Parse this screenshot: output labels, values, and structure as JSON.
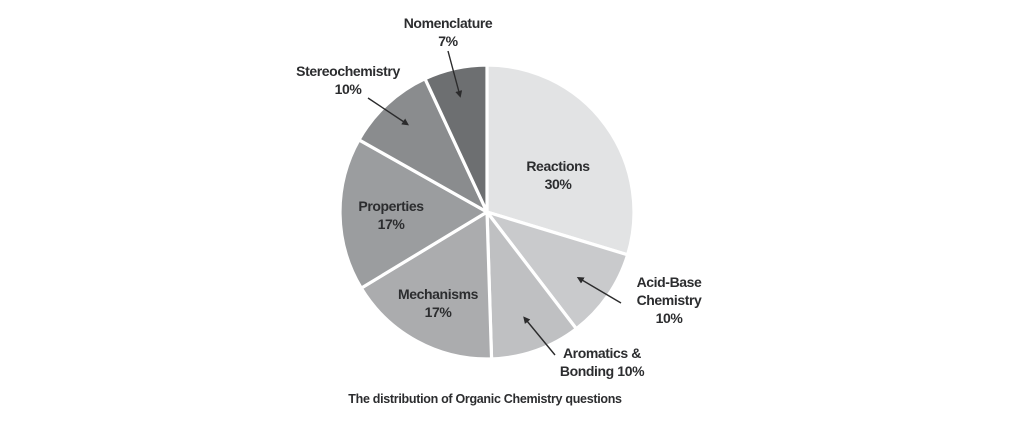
{
  "chart_data": {
    "type": "pie",
    "title": "The distribution of Organic Chemistry questions",
    "unit": "percent",
    "direction": "clockwise",
    "start_angle": "12 o'clock",
    "legend": "none",
    "slices": [
      {
        "name": "Reactions",
        "value": 30,
        "color": "#e2e3e4",
        "label_lines": [
          "Reactions",
          "30%"
        ],
        "label_position": "inside"
      },
      {
        "name": "Acid-Base Chemistry",
        "value": 10,
        "color": "#c9cacc",
        "label_lines": [
          "Acid-Base",
          "Chemistry",
          "10%"
        ],
        "label_position": "outside-right-with-arrow"
      },
      {
        "name": "Aromatics & Bonding",
        "value": 10,
        "color": "#bfc0c2",
        "label_lines": [
          "Aromatics &",
          "Bonding 10%"
        ],
        "label_position": "outside-bottom-right-with-arrow"
      },
      {
        "name": "Mechanisms",
        "value": 17,
        "color": "#abacae",
        "label_lines": [
          "Mechanisms",
          "17%"
        ],
        "label_position": "inside"
      },
      {
        "name": "Properties",
        "value": 17,
        "color": "#9b9d9f",
        "label_lines": [
          "Properties",
          "17%"
        ],
        "label_position": "inside"
      },
      {
        "name": "Stereochemistry",
        "value": 10,
        "color": "#8a8c8e",
        "label_lines": [
          "Stereochemistry",
          "10%"
        ],
        "label_position": "outside-upper-left-with-arrow"
      },
      {
        "name": "Nomenclature",
        "value": 7,
        "color": "#6d6f71",
        "label_lines": [
          "Nomenclature",
          "7%"
        ],
        "label_position": "outside-top-with-arrow"
      }
    ],
    "caption": "The distribution of Organic Chemistry questions"
  },
  "styles": {
    "background": "#ffffff",
    "text_color": "#2c2d2f",
    "arrow_color": "#2b2b2c",
    "separator_color": "#ffffff"
  }
}
